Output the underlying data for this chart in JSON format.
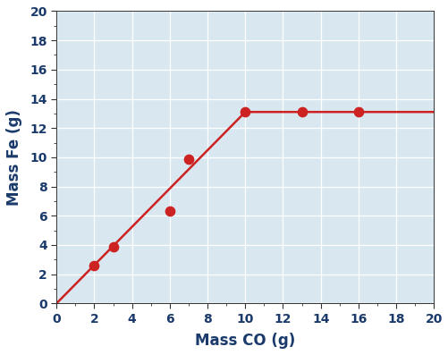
{
  "scatter_x": [
    2,
    3,
    6,
    7,
    10,
    13,
    16
  ],
  "scatter_y": [
    2.6,
    3.9,
    6.3,
    9.9,
    13.1,
    13.1,
    13.1
  ],
  "line_x": [
    0,
    10,
    20
  ],
  "line_y": [
    0,
    13.1,
    13.1
  ],
  "xlabel": "Mass CO (g)",
  "ylabel": "Mass Fe (g)",
  "xlim": [
    0,
    20
  ],
  "ylim": [
    0,
    20
  ],
  "xticks": [
    0,
    2,
    4,
    6,
    8,
    10,
    12,
    14,
    16,
    18,
    20
  ],
  "yticks": [
    0,
    2,
    4,
    6,
    8,
    10,
    12,
    14,
    16,
    18,
    20
  ],
  "dot_color": "#cc2222",
  "line_color": "#cc2222",
  "bg_color": "#d9e8f0",
  "fig_bg_color": "#ffffff",
  "axis_label_color": "#1a3a6b",
  "tick_label_color": "#1a3a6b",
  "dot_size": 55,
  "line_width": 1.8,
  "xlabel_fontsize": 12,
  "ylabel_fontsize": 12,
  "tick_fontsize": 10,
  "grid_color": "#ffffff",
  "grid_linewidth": 0.9,
  "spine_color": "#333333"
}
